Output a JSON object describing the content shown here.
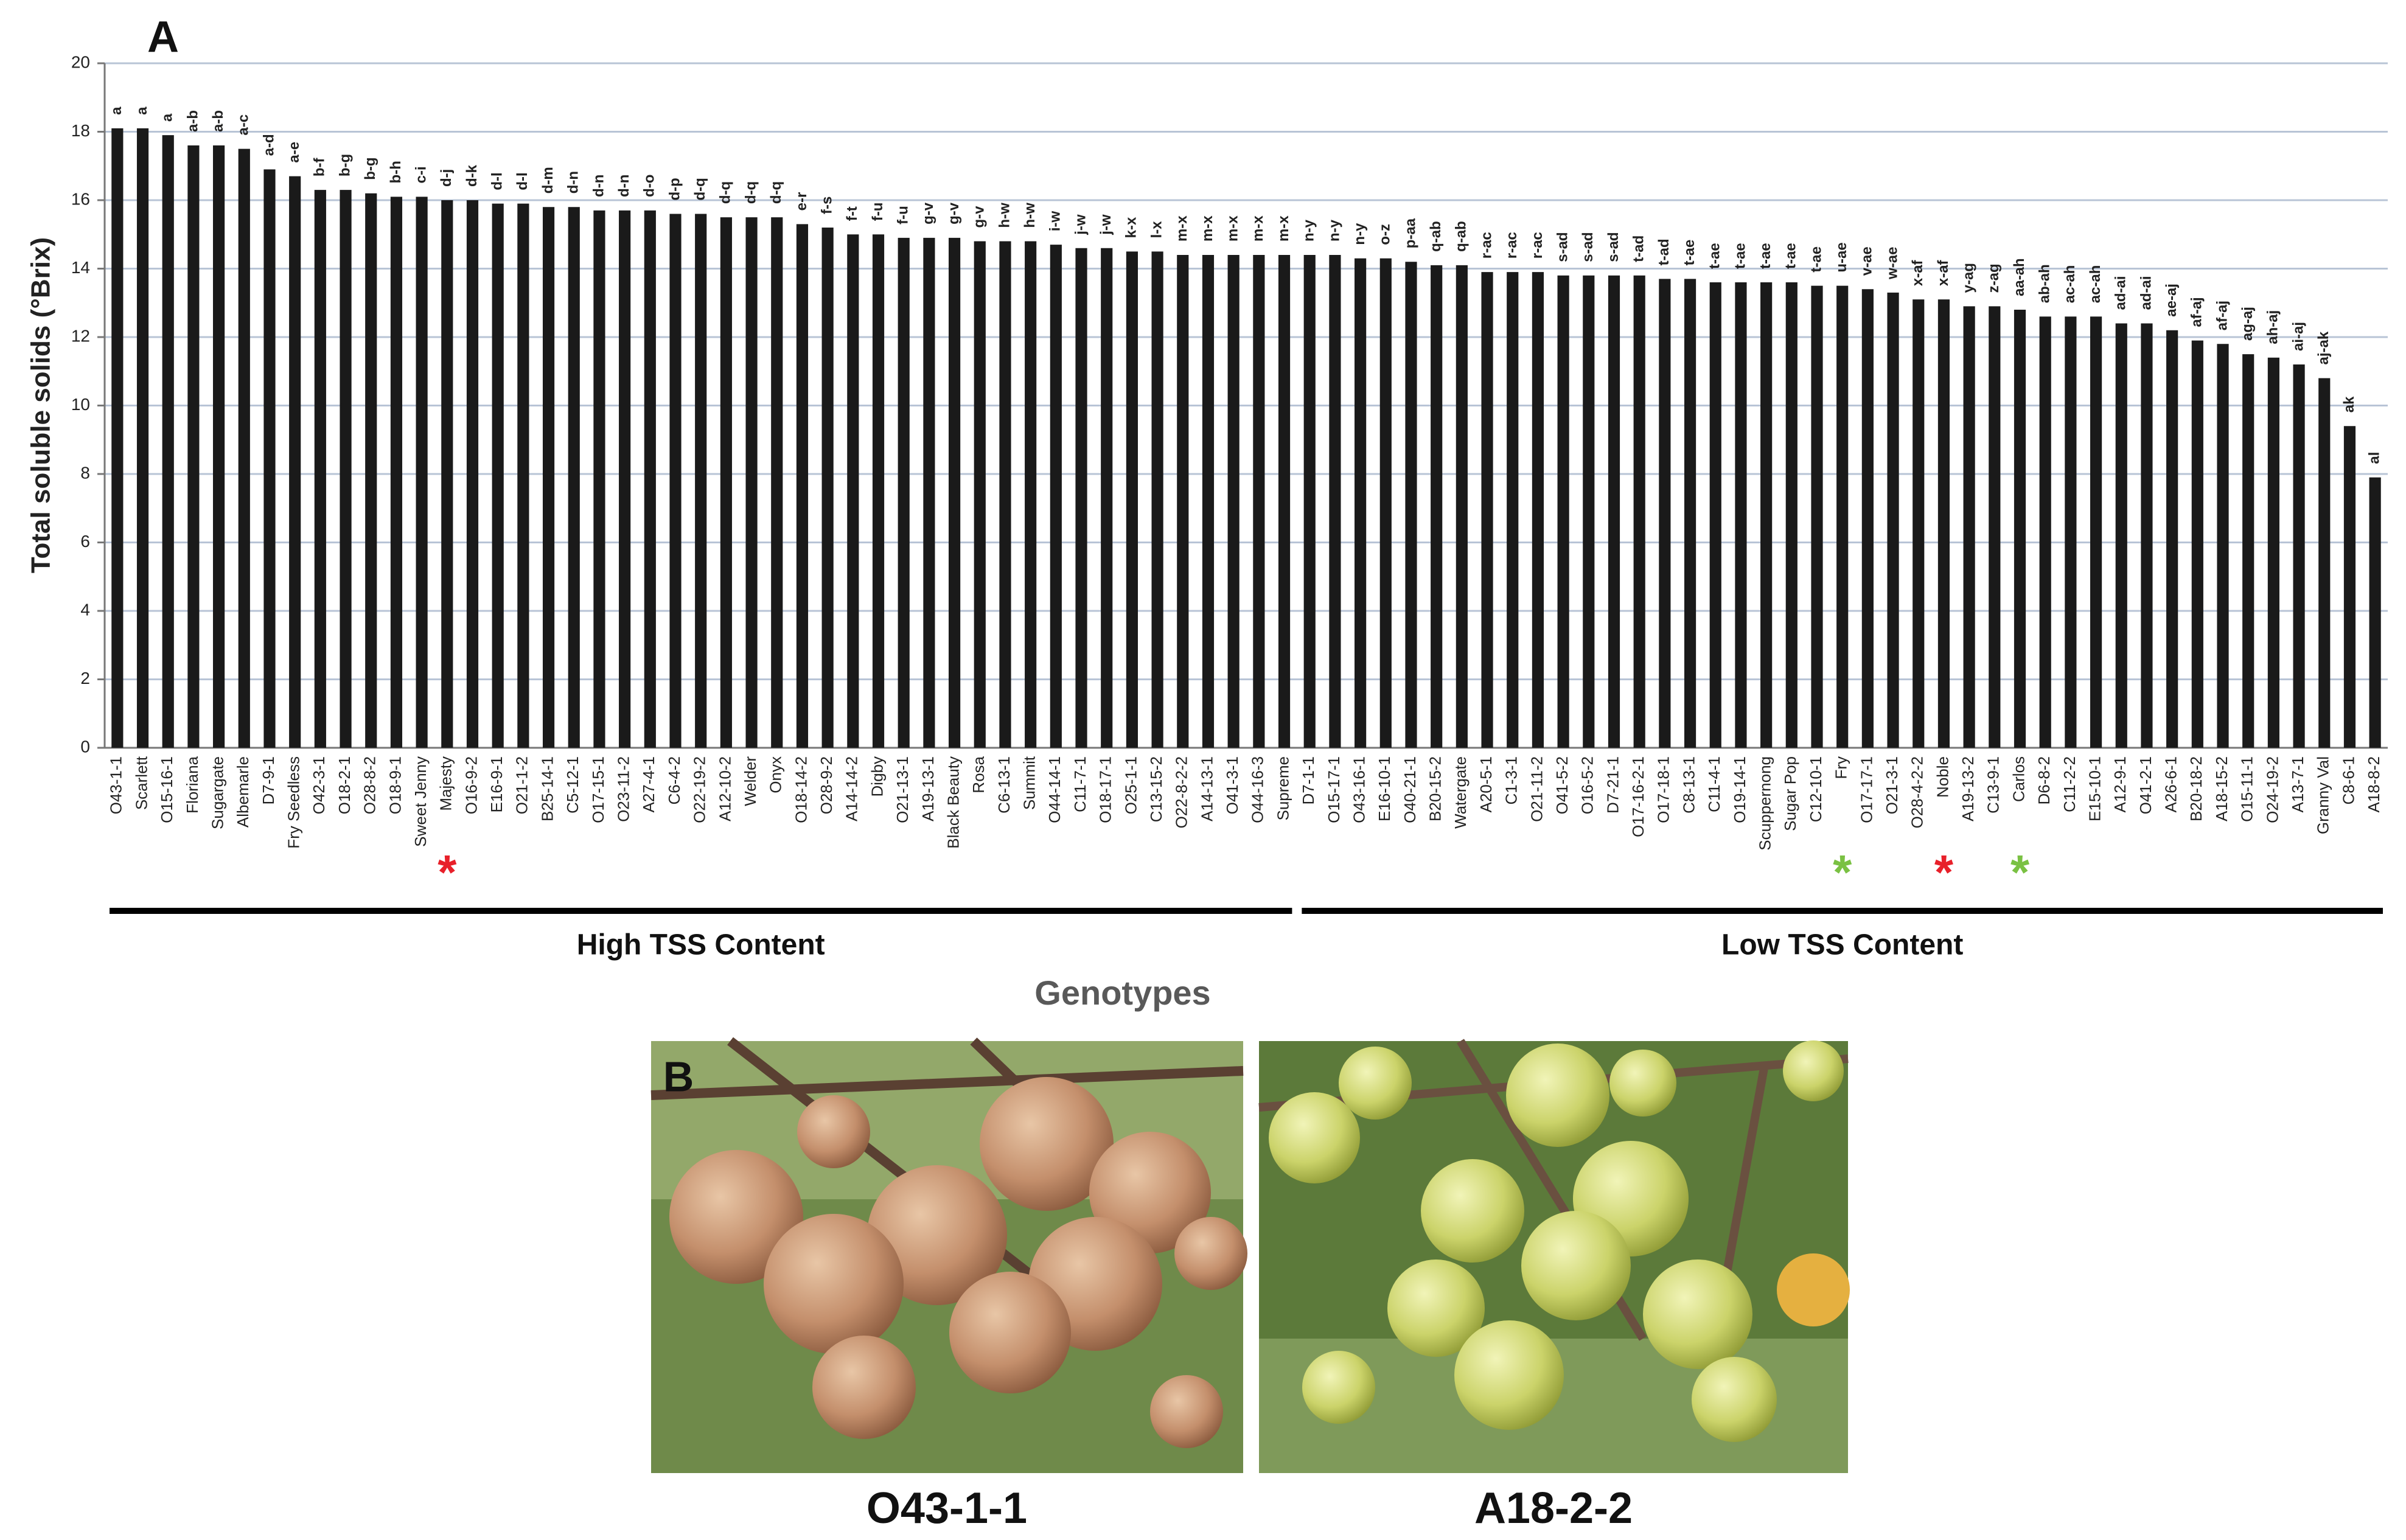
{
  "chart_data": {
    "type": "bar",
    "panel_label": "A",
    "ylabel": "Total soluble solids (°Brix)",
    "xlabel": "Genotypes",
    "color": "#1a1a1a",
    "grid": true,
    "ylim": [
      0,
      20
    ],
    "yticks": [
      0,
      2,
      4,
      6,
      8,
      10,
      12,
      14,
      16,
      18,
      20
    ],
    "categories": [
      "O43-1-1",
      "Scarlett",
      "O15-16-1",
      "Floriana",
      "Sugargate",
      "Albemarle",
      "D7-9-1",
      "Fry Seedless",
      "O42-3-1",
      "O18-2-1",
      "O28-8-2",
      "O18-9-1",
      "Sweet Jenny",
      "Majesty",
      "O16-9-2",
      "E16-9-1",
      "O21-1-2",
      "B25-14-1",
      "C5-12-1",
      "O17-15-1",
      "O23-11-2",
      "A27-4-1",
      "C6-4-2",
      "O22-19-2",
      "A12-10-2",
      "Welder",
      "Onyx",
      "O18-14-2",
      "O28-9-2",
      "A14-14-2",
      "Digby",
      "O21-13-1",
      "A19-13-1",
      "Black Beauty",
      "Rosa",
      "C6-13-1",
      "Summit",
      "O44-14-1",
      "C11-7-1",
      "O18-17-1",
      "O25-1-1",
      "C13-15-2",
      "O22-8-2-2",
      "A14-13-1",
      "O41-3-1",
      "O44-16-3",
      "Supreme",
      "D7-1-1",
      "O15-17-1",
      "O43-16-1",
      "E16-10-1",
      "O40-21-1",
      "B20-15-2",
      "Watergate",
      "A20-5-1",
      "C1-3-1",
      "O21-11-2",
      "O41-5-2",
      "O16-5-2",
      "D7-21-1",
      "O17-16-2-1",
      "O17-18-1",
      "C8-13-1",
      "C11-4-1",
      "O19-14-1",
      "Scuppernong",
      "Sugar Pop",
      "C12-10-1",
      "Fry",
      "O17-17-1",
      "O21-3-1",
      "O28-4-2-2",
      "Noble",
      "A19-13-2",
      "C13-9-1",
      "Carlos",
      "D6-8-2",
      "C11-2-2",
      "E15-10-1",
      "A12-9-1",
      "O41-2-1",
      "A26-6-1",
      "B20-18-2",
      "A18-15-2",
      "O15-11-1",
      "O24-19-2",
      "A13-7-1",
      "Granny Val",
      "C8-6-1",
      "A18-8-2"
    ],
    "values": [
      18.1,
      18.1,
      17.9,
      17.6,
      17.6,
      17.5,
      16.9,
      16.7,
      16.3,
      16.3,
      16.2,
      16.1,
      16.1,
      16.0,
      16.0,
      15.9,
      15.9,
      15.8,
      15.8,
      15.7,
      15.7,
      15.7,
      15.6,
      15.6,
      15.5,
      15.5,
      15.5,
      15.3,
      15.2,
      15.0,
      15.0,
      14.9,
      14.9,
      14.9,
      14.8,
      14.8,
      14.8,
      14.7,
      14.6,
      14.6,
      14.5,
      14.5,
      14.4,
      14.4,
      14.4,
      14.4,
      14.4,
      14.4,
      14.4,
      14.3,
      14.3,
      14.2,
      14.1,
      14.1,
      13.9,
      13.9,
      13.9,
      13.8,
      13.8,
      13.8,
      13.8,
      13.7,
      13.7,
      13.6,
      13.6,
      13.6,
      13.6,
      13.5,
      13.5,
      13.4,
      13.3,
      13.1,
      13.1,
      12.9,
      12.9,
      12.8,
      12.6,
      12.6,
      12.6,
      12.4,
      12.4,
      12.2,
      11.9,
      11.8,
      11.5,
      11.4,
      11.2,
      10.8,
      9.4,
      7.9
    ],
    "letters": [
      "a",
      "a",
      "a",
      "a-b",
      "a-b",
      "a-c",
      "a-d",
      "a-e",
      "b-f",
      "b-g",
      "b-g",
      "b-h",
      "c-i",
      "d-j",
      "d-k",
      "d-l",
      "d-l",
      "d-m",
      "d-n",
      "d-n",
      "d-n",
      "d-o",
      "d-p",
      "d-q",
      "d-q",
      "d-q",
      "d-q",
      "e-r",
      "f-s",
      "f-t",
      "f-u",
      "f-u",
      "g-v",
      "g-v",
      "g-v",
      "h-w",
      "h-w",
      "i-w",
      "j-w",
      "j-w",
      "k-x",
      "l-x",
      "m-x",
      "m-x",
      "m-x",
      "m-x",
      "m-x",
      "n-y",
      "n-y",
      "n-y",
      "o-z",
      "p-aa",
      "q-ab",
      "q-ab",
      "r-ac",
      "r-ac",
      "r-ac",
      "s-ad",
      "s-ad",
      "s-ad",
      "t-ad",
      "t-ad",
      "t-ae",
      "t-ae",
      "t-ae",
      "t-ae",
      "t-ae",
      "t-ae",
      "u-ae",
      "v-ae",
      "w-ae",
      "x-af",
      "x-af",
      "y-ag",
      "z-ag",
      "aa-ah",
      "ab-ah",
      "ac-ah",
      "ac-ah",
      "ad-ai",
      "ad-ai",
      "ae-aj",
      "af-aj",
      "af-aj",
      "ag-aj",
      "ah-aj",
      "ai-aj",
      "aj-ak",
      "ak",
      "al"
    ],
    "asterisks": [
      {
        "label": "*",
        "category": "Majesty",
        "color": "#e8202a"
      },
      {
        "label": "*",
        "category": "Fry",
        "color": "#7ac143"
      },
      {
        "label": "*",
        "category": "Noble",
        "color": "#e8202a"
      },
      {
        "label": "*",
        "category": "Carlos",
        "color": "#7ac143"
      }
    ],
    "groups": [
      {
        "label": "High TSS Content",
        "from": "O43-1-1",
        "to": "Supreme"
      },
      {
        "label": "Low TSS Content",
        "from": "D7-1-1",
        "to": "A18-8-2"
      }
    ]
  },
  "photos": {
    "panel_label": "B",
    "captions": [
      "O43-1-1",
      "A18-2-2"
    ]
  }
}
